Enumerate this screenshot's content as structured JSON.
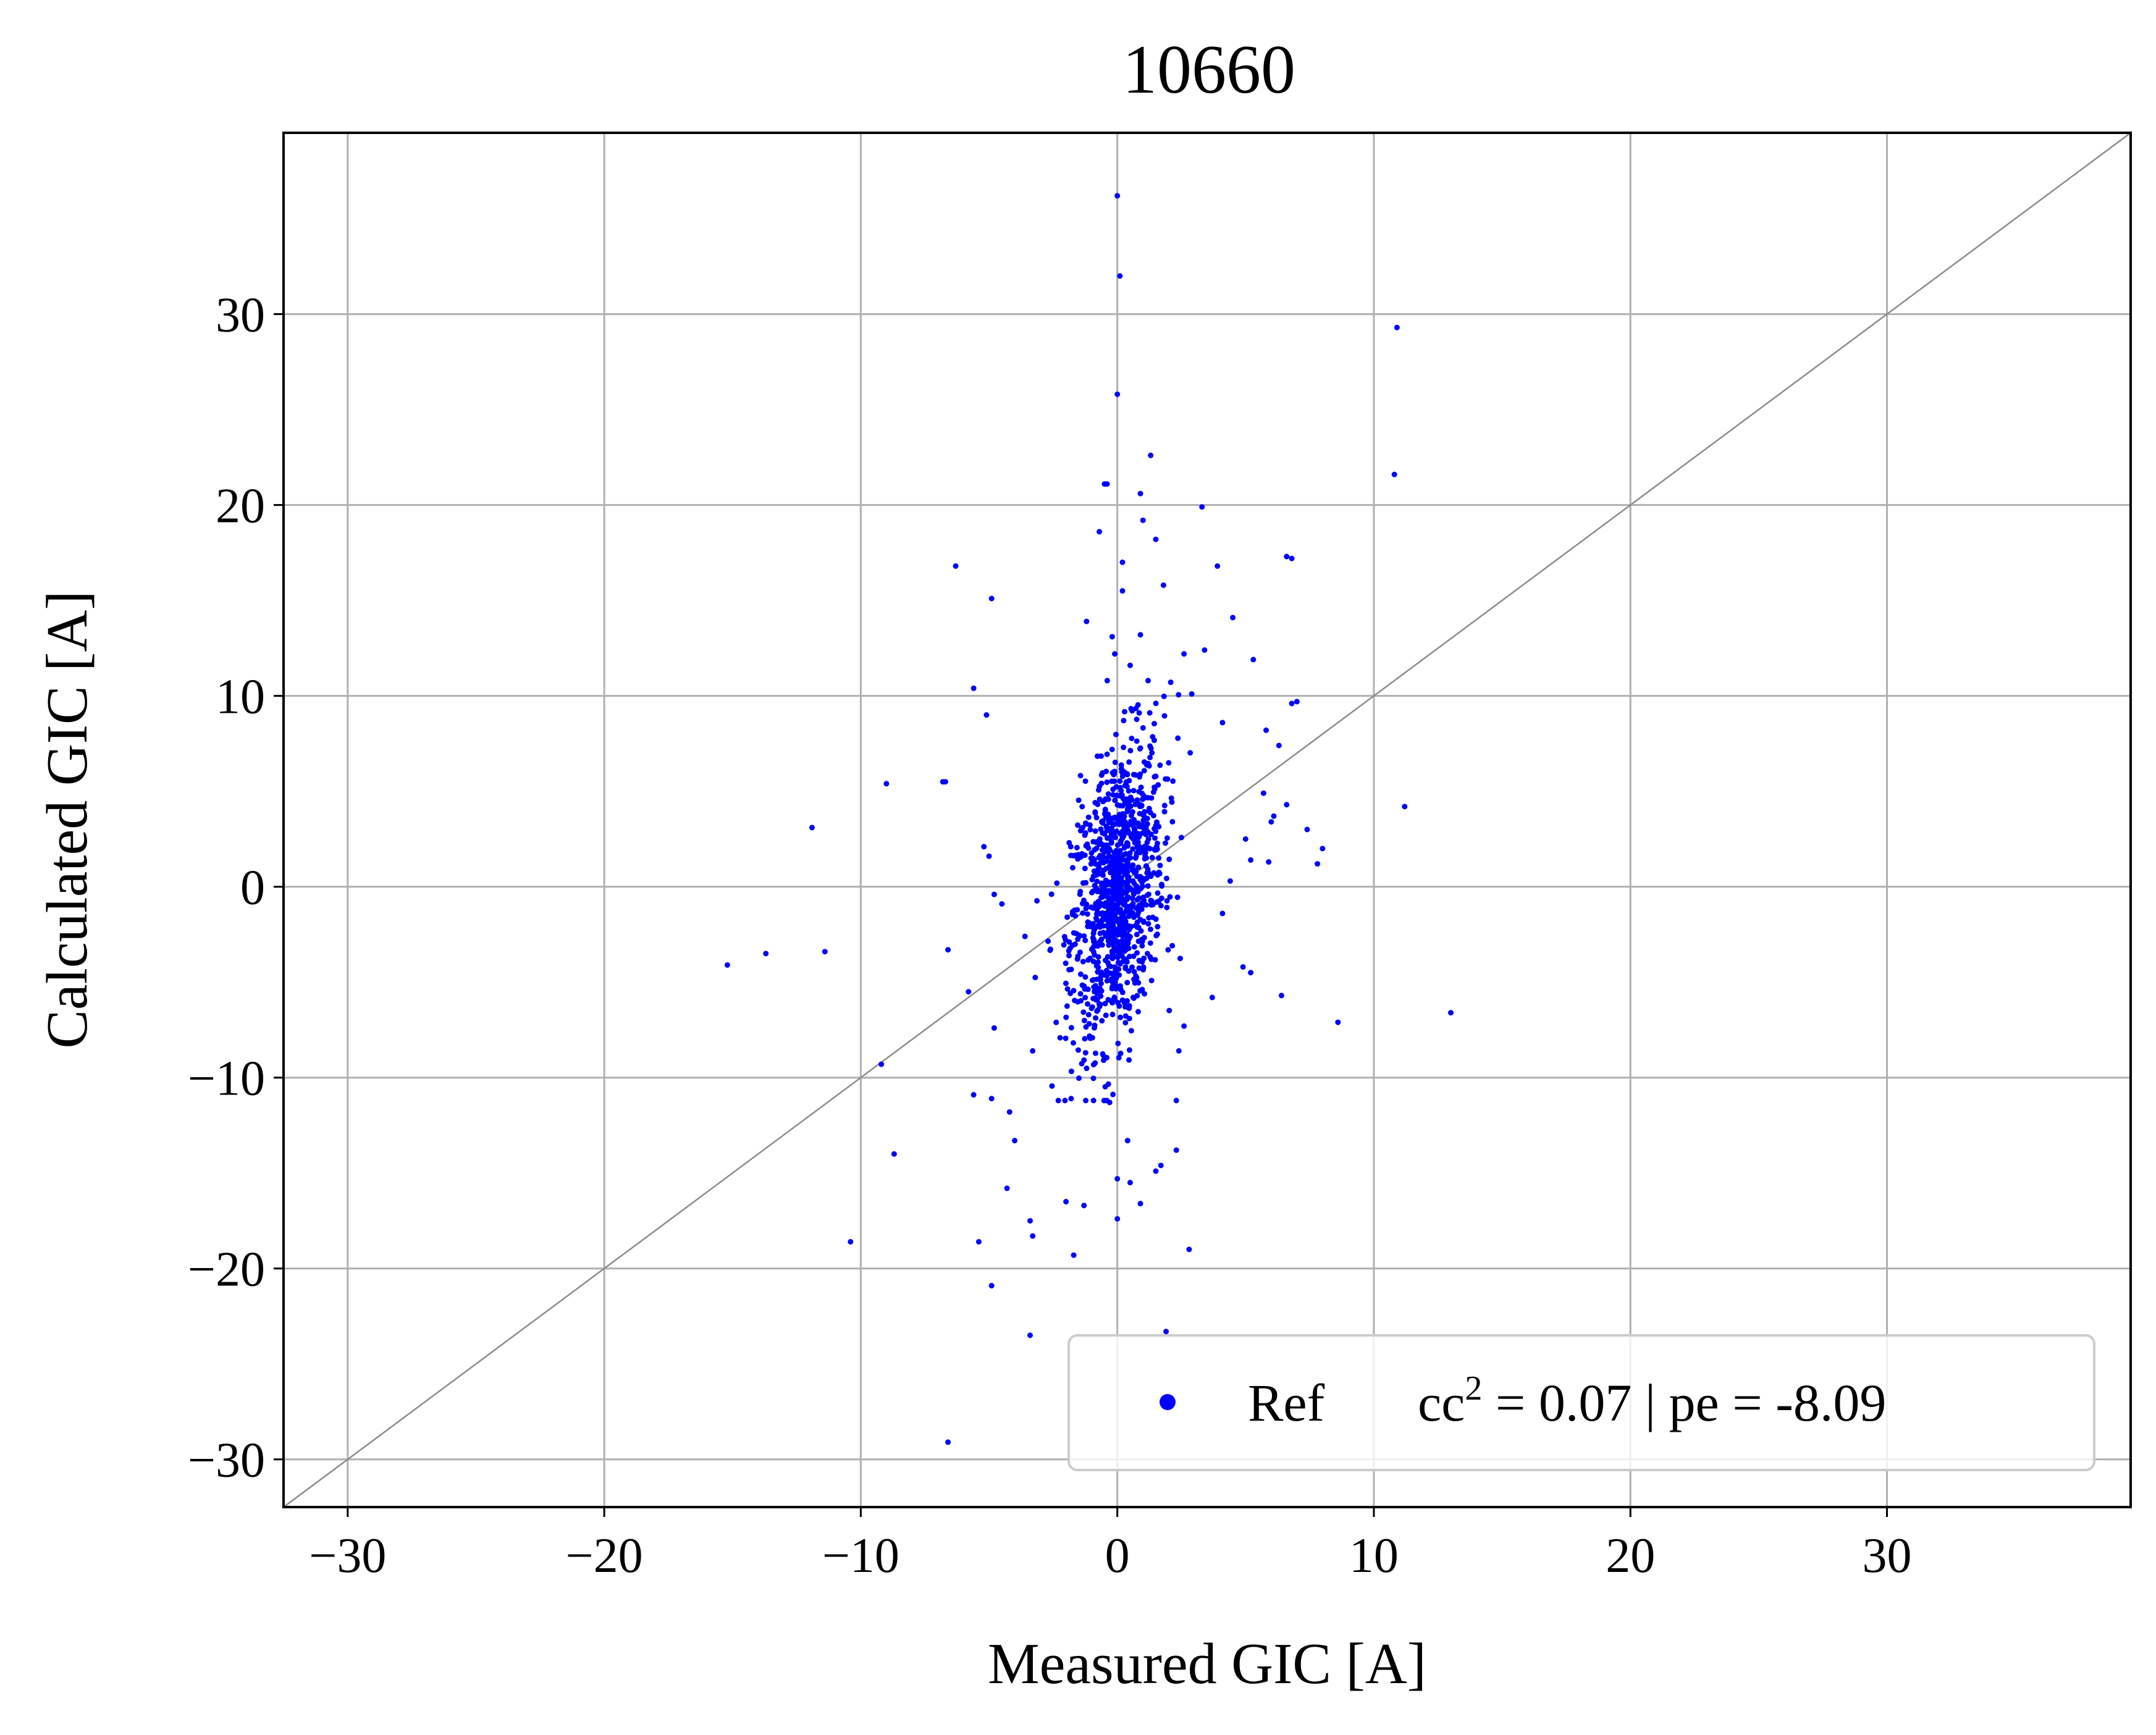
{
  "chart_data": {
    "type": "scatter",
    "title": "10660",
    "xlabel": "Measured GIC [A]",
    "ylabel": "Calculated GIC [A]",
    "xlim": [
      -32.5,
      39.5
    ],
    "ylim": [
      -32.5,
      39.5
    ],
    "xticks": [
      -30,
      -20,
      -10,
      0,
      10,
      20,
      30
    ],
    "yticks": [
      -30,
      -20,
      -10,
      0,
      10,
      20,
      30
    ],
    "xtick_labels": [
      "−30",
      "−20",
      "−10",
      "0",
      "10",
      "20",
      "30"
    ],
    "ytick_labels": [
      "−30",
      "−20",
      "−10",
      "0",
      "10",
      "20",
      "30"
    ],
    "grid": true,
    "reference_line": "y = x",
    "legend": {
      "placement": "lower-right",
      "entry_name": "Ref",
      "entry_stat_prefix": "cc",
      "entry_stat_exponent": "2",
      "entry_stat_rest": " = 0.07 | pe = -8.09"
    },
    "colors": {
      "points": "#0000ff",
      "grid": "#b0b0b0",
      "reference_line": "#8c8c8c"
    },
    "series": [
      {
        "outliers": [
          [
            0.0,
            36.2
          ],
          [
            0.1,
            32.0
          ],
          [
            10.9,
            29.3
          ],
          [
            0.0,
            25.8
          ],
          [
            1.3,
            22.6
          ],
          [
            10.8,
            21.6
          ],
          [
            -0.5,
            21.1
          ],
          [
            -0.4,
            21.1
          ],
          [
            0.9,
            20.6
          ],
          [
            3.3,
            19.9
          ],
          [
            1.0,
            19.2
          ],
          [
            -0.7,
            18.6
          ],
          [
            1.5,
            18.2
          ],
          [
            6.6,
            17.3
          ],
          [
            -6.3,
            16.8
          ],
          [
            3.9,
            16.8
          ],
          [
            6.8,
            17.2
          ],
          [
            0.2,
            17.0
          ],
          [
            1.8,
            15.8
          ],
          [
            0.2,
            15.5
          ],
          [
            -4.9,
            15.1
          ],
          [
            4.5,
            14.1
          ],
          [
            -1.2,
            13.9
          ],
          [
            -0.2,
            13.1
          ],
          [
            0.9,
            13.2
          ],
          [
            3.4,
            12.4
          ],
          [
            2.6,
            12.2
          ],
          [
            5.3,
            11.9
          ],
          [
            0.5,
            11.6
          ],
          [
            -0.1,
            12.2
          ],
          [
            -5.6,
            10.4
          ],
          [
            1.2,
            10.8
          ],
          [
            2.9,
            10.1
          ],
          [
            -5.1,
            9.0
          ],
          [
            6.8,
            9.6
          ],
          [
            7.0,
            9.7
          ],
          [
            4.1,
            8.6
          ],
          [
            5.8,
            8.2
          ],
          [
            6.3,
            7.4
          ],
          [
            -9.0,
            5.4
          ],
          [
            -6.8,
            5.5
          ],
          [
            -6.7,
            5.5
          ],
          [
            5.7,
            4.9
          ],
          [
            6.6,
            4.3
          ],
          [
            11.2,
            4.2
          ],
          [
            6.0,
            3.4
          ],
          [
            6.1,
            3.7
          ],
          [
            7.4,
            3.0
          ],
          [
            -11.9,
            3.1
          ],
          [
            5.0,
            2.5
          ],
          [
            8.0,
            2.0
          ],
          [
            -5.2,
            2.1
          ],
          [
            -5.0,
            1.6
          ],
          [
            5.9,
            1.3
          ],
          [
            7.8,
            1.2
          ],
          [
            5.2,
            1.4
          ],
          [
            4.4,
            0.3
          ],
          [
            -4.8,
            -0.4
          ],
          [
            -4.5,
            -0.9
          ],
          [
            4.1,
            -1.4
          ],
          [
            -3.6,
            -2.6
          ],
          [
            -6.6,
            -3.3
          ],
          [
            -11.4,
            -3.4
          ],
          [
            -13.7,
            -3.5
          ],
          [
            -15.2,
            -4.1
          ],
          [
            4.9,
            -4.2
          ],
          [
            5.2,
            -4.5
          ],
          [
            -5.8,
            -5.5
          ],
          [
            6.4,
            -5.7
          ],
          [
            3.7,
            -5.8
          ],
          [
            13.0,
            -6.6
          ],
          [
            8.6,
            -7.1
          ],
          [
            -4.8,
            -7.4
          ],
          [
            2.6,
            -7.3
          ],
          [
            2.4,
            -8.6
          ],
          [
            -3.3,
            -8.6
          ],
          [
            -9.2,
            -9.3
          ],
          [
            -5.6,
            -10.9
          ],
          [
            -4.2,
            -11.8
          ],
          [
            -4.9,
            -11.1
          ],
          [
            -2.3,
            -11.2
          ],
          [
            -1.8,
            -11.1
          ],
          [
            2.3,
            -11.2
          ],
          [
            -0.3,
            -11.3
          ],
          [
            -4.0,
            -13.3
          ],
          [
            0.4,
            -13.3
          ],
          [
            -8.7,
            -14.0
          ],
          [
            2.3,
            -13.8
          ],
          [
            1.7,
            -14.6
          ],
          [
            1.5,
            -14.9
          ],
          [
            0.0,
            -15.3
          ],
          [
            0.5,
            -15.5
          ],
          [
            -4.3,
            -15.8
          ],
          [
            -1.3,
            -16.7
          ],
          [
            -2.0,
            -16.5
          ],
          [
            0.9,
            -16.6
          ],
          [
            -3.4,
            -17.5
          ],
          [
            0.0,
            -17.4
          ],
          [
            -3.3,
            -18.3
          ],
          [
            -5.4,
            -18.6
          ],
          [
            -10.4,
            -18.6
          ],
          [
            2.8,
            -19.0
          ],
          [
            -1.7,
            -19.3
          ],
          [
            -4.9,
            -20.9
          ],
          [
            -3.4,
            -23.5
          ],
          [
            1.9,
            -23.3
          ],
          [
            -6.6,
            -29.1
          ]
        ],
        "core_distribution": {
          "count": 1100,
          "x_center": 0.0,
          "y_center": -0.2,
          "x_spread": 0.9,
          "y_spread": 3.9,
          "correlation": 0.35
        }
      }
    ]
  }
}
